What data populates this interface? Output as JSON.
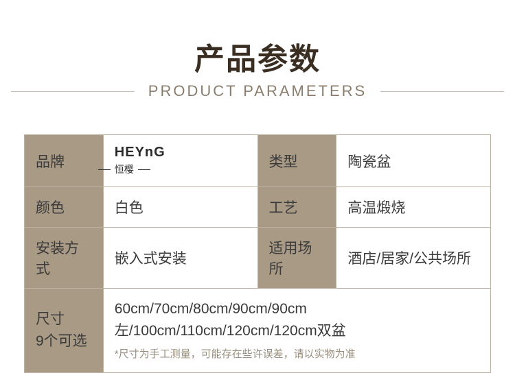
{
  "header": {
    "title_cn": "产品参数",
    "title_en": "PRODUCT PARAMETERS"
  },
  "brand": {
    "logo_text": "HEYnG",
    "cn_name": "恒樱"
  },
  "rows": [
    {
      "label1": "品牌",
      "value1_is_brand": true,
      "label2": "类型",
      "value2": "陶瓷盆"
    },
    {
      "label1": "颜色",
      "value1": "白色",
      "label2": "工艺",
      "value2": "高温煅烧"
    },
    {
      "label1": "安装方式",
      "value1": "嵌入式安装",
      "label2": "适用场所",
      "value2": "酒店/居家/公共场所"
    }
  ],
  "size_row": {
    "label_line1": "尺寸",
    "label_line2": "9个可选",
    "value": "60cm/70cm/80cm/90cm/90cm左/100cm/110cm/120cm/120cm双盆",
    "note": "*尺寸为手工测量，可能存在些许误差，请以实物为准"
  },
  "colors": {
    "label_bg": "#a99a85",
    "border": "#bdb2a1",
    "title": "#3a2e22",
    "subtitle": "#8a7d6e"
  }
}
